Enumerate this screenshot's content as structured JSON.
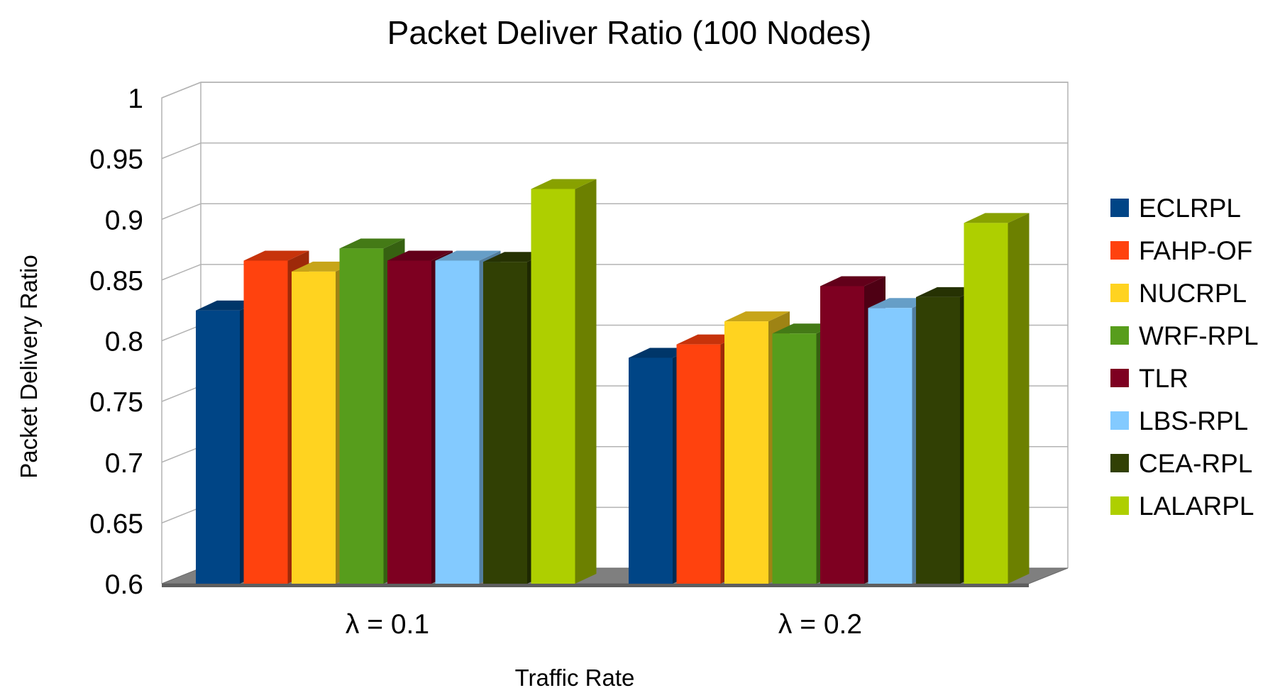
{
  "chart_data": {
    "type": "bar",
    "title": "Packet Deliver Ratio (100 Nodes)",
    "xlabel": "Traffic Rate",
    "ylabel": "Packet Delivery Ratio",
    "ylim": [
      0.6,
      1
    ],
    "yticks": [
      0.6,
      0.65,
      0.7,
      0.75,
      0.8,
      0.85,
      0.9,
      0.95,
      1
    ],
    "ytick_labels": [
      "0.6",
      "0.65",
      "0.7",
      "0.75",
      "0.8",
      "0.85",
      "0.9",
      "0.95",
      "1"
    ],
    "categories": [
      "λ = 0.1",
      "λ = 0.2"
    ],
    "grid": true,
    "legend_position": "right",
    "three_d": true,
    "series": [
      {
        "name": "ECLRPL",
        "color": "#004586",
        "values": [
          0.825,
          0.786
        ]
      },
      {
        "name": "FAHP-OF",
        "color": "#ff420e",
        "values": [
          0.866,
          0.797
        ]
      },
      {
        "name": "NUCRPL",
        "color": "#ffd320",
        "values": [
          0.857,
          0.816
        ]
      },
      {
        "name": "WRF-RPL",
        "color": "#579d1c",
        "values": [
          0.876,
          0.806
        ]
      },
      {
        "name": "TLR",
        "color": "#7e0021",
        "values": [
          0.866,
          0.845
        ]
      },
      {
        "name": "LBS-RPL",
        "color": "#83caff",
        "values": [
          0.866,
          0.827
        ]
      },
      {
        "name": "CEA-RPL",
        "color": "#314004",
        "values": [
          0.865,
          0.836
        ]
      },
      {
        "name": "LALARPL",
        "color": "#aecf00",
        "values": [
          0.925,
          0.897
        ]
      }
    ]
  }
}
